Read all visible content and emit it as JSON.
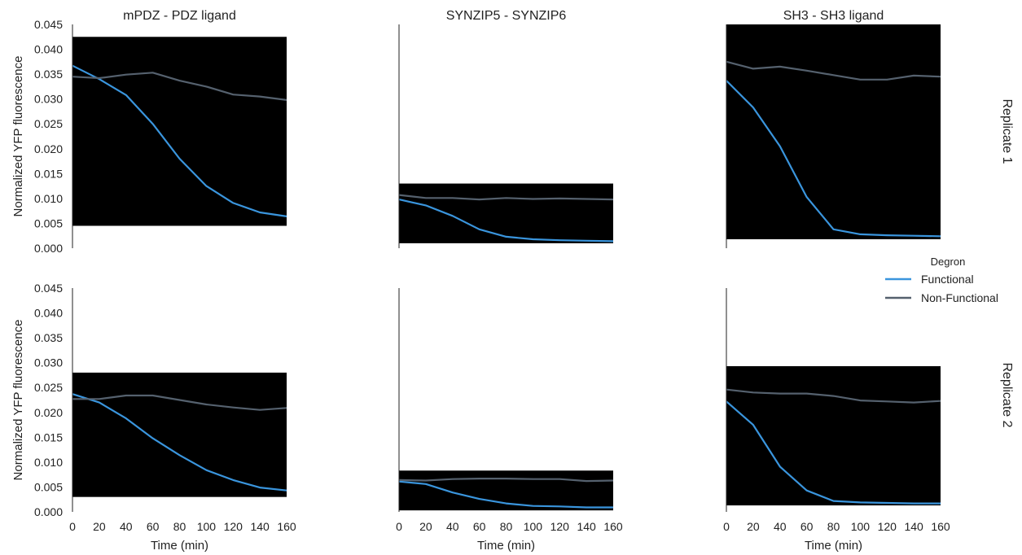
{
  "chart_data": {
    "type": "line",
    "ylabel": "Normalized YFP fluorescence",
    "xlabel": "Time (min)",
    "x": [
      0,
      20,
      40,
      60,
      80,
      100,
      120,
      140,
      160
    ],
    "xticks": [
      0,
      20,
      40,
      60,
      80,
      100,
      120,
      140,
      160
    ],
    "xlim": [
      0,
      160
    ],
    "ylim": [
      0,
      0.045
    ],
    "yticks": [
      "0.000",
      "0.005",
      "0.010",
      "0.015",
      "0.020",
      "0.025",
      "0.030",
      "0.035",
      "0.040",
      "0.045"
    ],
    "columns": [
      "mPDZ - PDZ ligand",
      "SYNZIP5 - SYNZIP6",
      "SH3 - SH3 ligand"
    ],
    "rows": [
      "Replicate 1",
      "Replicate 2"
    ],
    "legend": {
      "title": "Degron",
      "placement": "right",
      "entries": [
        {
          "name": "Functional",
          "color": "#3a95dd"
        },
        {
          "name": "Non-Functional",
          "color": "#55616e"
        }
      ]
    },
    "panel_background": "#000000",
    "panels": [
      {
        "row": 0,
        "col": 0,
        "band": [
          0.0045,
          0.0425
        ],
        "series": [
          {
            "name": "Functional",
            "values": [
              0.0367,
              0.034,
              0.0308,
              0.025,
              0.018,
              0.0125,
              0.0091,
              0.0072,
              0.0064
            ]
          },
          {
            "name": "Non-Functional",
            "values": [
              0.0345,
              0.0342,
              0.0349,
              0.0353,
              0.0337,
              0.0325,
              0.0309,
              0.0305,
              0.0298
            ]
          }
        ]
      },
      {
        "row": 0,
        "col": 1,
        "band": [
          0.001,
          0.013
        ],
        "series": [
          {
            "name": "Functional",
            "values": [
              0.0098,
              0.0086,
              0.0065,
              0.0038,
              0.0023,
              0.0018,
              0.0016,
              0.0015,
              0.0014
            ]
          },
          {
            "name": "Non-Functional",
            "values": [
              0.0107,
              0.0101,
              0.0101,
              0.0098,
              0.0101,
              0.0099,
              0.01,
              0.0099,
              0.0098
            ]
          }
        ]
      },
      {
        "row": 0,
        "col": 2,
        "band": [
          0.0018,
          0.045
        ],
        "series": [
          {
            "name": "Functional",
            "values": [
              0.0337,
              0.0283,
              0.0205,
              0.0103,
              0.0038,
              0.0028,
              0.0026,
              0.0025,
              0.0024
            ]
          },
          {
            "name": "Non-Functional",
            "values": [
              0.0375,
              0.0361,
              0.0365,
              0.0357,
              0.0348,
              0.0339,
              0.0339,
              0.0347,
              0.0345
            ]
          }
        ]
      },
      {
        "row": 1,
        "col": 0,
        "band": [
          0.003,
          0.028
        ],
        "series": [
          {
            "name": "Functional",
            "values": [
              0.0237,
              0.022,
              0.0188,
              0.0148,
              0.0114,
              0.0084,
              0.0064,
              0.0049,
              0.0043
            ]
          },
          {
            "name": "Non-Functional",
            "values": [
              0.0227,
              0.0227,
              0.0234,
              0.0234,
              0.0225,
              0.0216,
              0.021,
              0.0205,
              0.0209
            ]
          }
        ]
      },
      {
        "row": 1,
        "col": 1,
        "band": [
          0.0003,
          0.0083
        ],
        "series": [
          {
            "name": "Functional",
            "values": [
              0.0061,
              0.0056,
              0.0039,
              0.0026,
              0.0017,
              0.0012,
              0.0011,
              0.0009,
              0.0009
            ]
          },
          {
            "name": "Non-Functional",
            "values": [
              0.0064,
              0.0063,
              0.0066,
              0.0067,
              0.0067,
              0.0066,
              0.0066,
              0.0062,
              0.0063
            ]
          }
        ]
      },
      {
        "row": 1,
        "col": 2,
        "band": [
          0.0013,
          0.0293
        ],
        "series": [
          {
            "name": "Functional",
            "values": [
              0.0222,
              0.0175,
              0.0091,
              0.0043,
              0.0022,
              0.0019,
              0.0018,
              0.0017,
              0.0017
            ]
          },
          {
            "name": "Non-Functional",
            "values": [
              0.0246,
              0.024,
              0.0238,
              0.0238,
              0.0233,
              0.0224,
              0.0222,
              0.022,
              0.0223
            ]
          }
        ]
      }
    ]
  }
}
